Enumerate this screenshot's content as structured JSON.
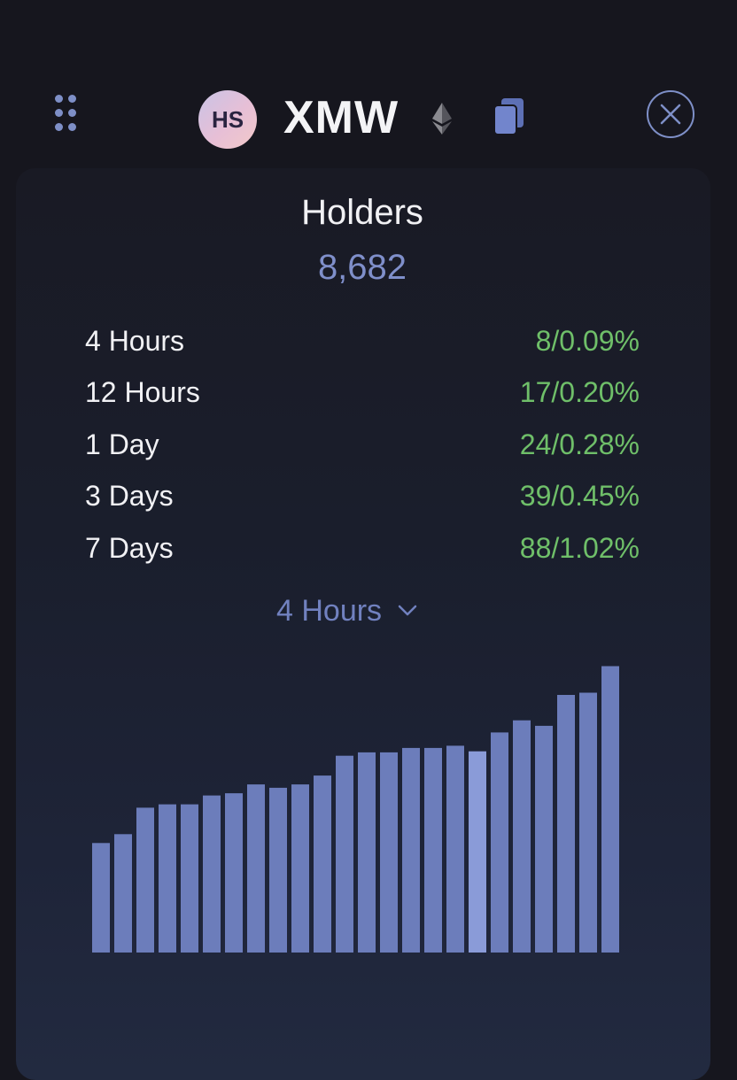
{
  "header": {
    "avatar_initials": "HS",
    "ticker": "XMW",
    "icons": [
      "drag-handle-icon",
      "ethereum-icon",
      "copy-icon",
      "close-icon"
    ]
  },
  "holders": {
    "title": "Holders",
    "count": "8,682",
    "stats": [
      {
        "label": "4 Hours",
        "value": "8/0.09%"
      },
      {
        "label": "12 Hours",
        "value": "17/0.20%"
      },
      {
        "label": "1 Day",
        "value": "24/0.28%"
      },
      {
        "label": "3 Days",
        "value": "39/0.45%"
      },
      {
        "label": "7 Days",
        "value": "88/1.02%"
      }
    ]
  },
  "range_select": {
    "selected": "4 Hours"
  },
  "colors": {
    "accent": "#7e8fc7",
    "positive": "#6fbf69",
    "bar": "#6c7dbb",
    "bar_highlight": "#8a9bd8"
  },
  "chart_data": {
    "type": "bar",
    "highlighted_index": 17,
    "values": [
      8594,
      8602,
      8626,
      8629,
      8629,
      8637,
      8639,
      8647,
      8644,
      8647,
      8655,
      8673,
      8676,
      8676,
      8680,
      8680,
      8682,
      8677,
      8694,
      8705,
      8700,
      8728,
      8730,
      8754
    ],
    "ylim": [
      8495,
      8780
    ]
  }
}
